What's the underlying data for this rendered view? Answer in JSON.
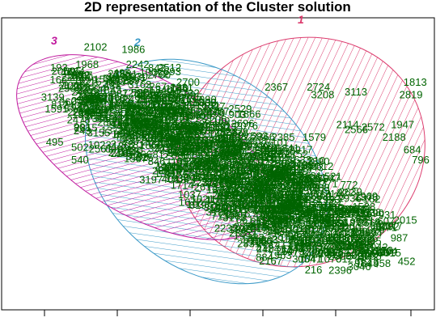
{
  "chart_data": {
    "type": "scatter",
    "title": "2D representation of the Cluster solution",
    "xlabel": "",
    "ylabel": "",
    "grid": false,
    "colors": {
      "points": "#006400",
      "cluster_1": "#dc3c6e",
      "cluster_2": "#3c9ac8",
      "cluster_3": "#c0199e",
      "frame": "#000000"
    },
    "clusters": [
      {
        "name": "1",
        "color": "#dc3c6e",
        "hatch": "steep"
      },
      {
        "name": "2",
        "color": "#3c9ac8",
        "hatch": "shallow"
      },
      {
        "name": "3",
        "color": "#c0199e",
        "hatch": "steep"
      }
    ],
    "x_ticks": [
      "",
      "",
      "",
      "",
      "",
      ""
    ],
    "labelled_points": [
      {
        "label": "2102",
        "x": 0.18,
        "y": 0.96
      },
      {
        "label": "1986",
        "x": 0.27,
        "y": 0.95
      },
      {
        "label": "1968",
        "x": 0.16,
        "y": 0.89
      },
      {
        "label": "2242",
        "x": 0.28,
        "y": 0.89
      },
      {
        "label": "1956",
        "x": 0.16,
        "y": 0.79
      },
      {
        "label": "2700",
        "x": 0.4,
        "y": 0.82
      },
      {
        "label": "2367",
        "x": 0.61,
        "y": 0.8
      },
      {
        "label": "2724",
        "x": 0.71,
        "y": 0.8
      },
      {
        "label": "3113",
        "x": 0.8,
        "y": 0.78
      },
      {
        "label": "1813",
        "x": 0.94,
        "y": 0.82
      },
      {
        "label": "3208",
        "x": 0.72,
        "y": 0.77
      },
      {
        "label": "2819",
        "x": 0.93,
        "y": 0.77
      },
      {
        "label": "2090",
        "x": 0.44,
        "y": 0.75
      },
      {
        "label": "1947",
        "x": 0.91,
        "y": 0.65
      },
      {
        "label": "2572",
        "x": 0.84,
        "y": 0.64
      },
      {
        "label": "2114",
        "x": 0.78,
        "y": 0.65
      },
      {
        "label": "2566",
        "x": 0.8,
        "y": 0.63
      },
      {
        "label": "1579",
        "x": 0.7,
        "y": 0.6
      },
      {
        "label": "2188",
        "x": 0.89,
        "y": 0.6
      },
      {
        "label": "495",
        "x": 0.09,
        "y": 0.58
      },
      {
        "label": "502",
        "x": 0.15,
        "y": 0.56
      },
      {
        "label": "1023",
        "x": 0.19,
        "y": 0.57
      },
      {
        "label": "684",
        "x": 0.94,
        "y": 0.55
      },
      {
        "label": "796",
        "x": 0.96,
        "y": 0.51
      },
      {
        "label": "2483",
        "x": 0.67,
        "y": 0.49
      },
      {
        "label": "540",
        "x": 0.15,
        "y": 0.51
      },
      {
        "label": "772",
        "x": 0.79,
        "y": 0.41
      },
      {
        "label": "723",
        "x": 0.61,
        "y": 0.41
      },
      {
        "label": "801",
        "x": 0.66,
        "y": 0.38
      },
      {
        "label": "763",
        "x": 0.66,
        "y": 0.33
      }
    ]
  }
}
